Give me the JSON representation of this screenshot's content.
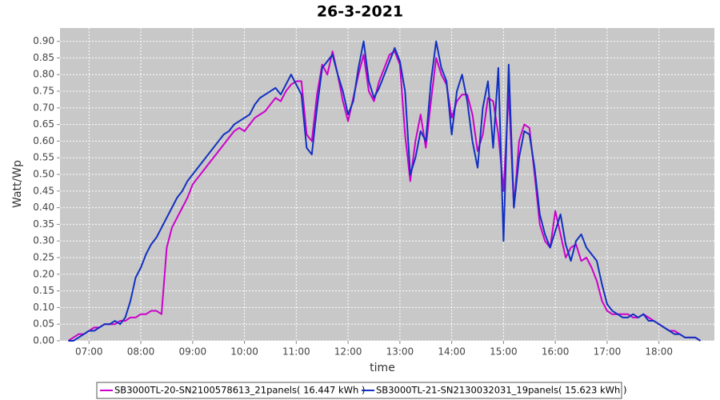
{
  "chart_data": {
    "type": "line",
    "title": "26-3-2021",
    "x_label": "time",
    "y_label": "Watt/Wp",
    "x": [
      6.6,
      6.7,
      6.8,
      6.9,
      7.0,
      7.1,
      7.2,
      7.3,
      7.4,
      7.5,
      7.6,
      7.7,
      7.8,
      7.9,
      8.0,
      8.1,
      8.2,
      8.3,
      8.4,
      8.5,
      8.6,
      8.7,
      8.8,
      8.9,
      9.0,
      9.1,
      9.2,
      9.3,
      9.4,
      9.5,
      9.6,
      9.7,
      9.8,
      9.9,
      10.0,
      10.1,
      10.2,
      10.3,
      10.4,
      10.5,
      10.6,
      10.7,
      10.8,
      10.9,
      11.0,
      11.1,
      11.2,
      11.3,
      11.4,
      11.5,
      11.6,
      11.7,
      11.8,
      11.9,
      12.0,
      12.1,
      12.2,
      12.3,
      12.4,
      12.5,
      12.6,
      12.7,
      12.8,
      12.9,
      13.0,
      13.1,
      13.2,
      13.3,
      13.4,
      13.5,
      13.6,
      13.7,
      13.8,
      13.9,
      14.0,
      14.1,
      14.2,
      14.3,
      14.4,
      14.5,
      14.6,
      14.7,
      14.8,
      14.9,
      15.0,
      15.1,
      15.2,
      15.3,
      15.4,
      15.5,
      15.6,
      15.7,
      15.8,
      15.9,
      16.0,
      16.1,
      16.2,
      16.3,
      16.4,
      16.5,
      16.6,
      16.7,
      16.8,
      16.9,
      17.0,
      17.1,
      17.2,
      17.3,
      17.4,
      17.5,
      17.6,
      17.7,
      17.8,
      17.9,
      18.0,
      18.1,
      18.2,
      18.3,
      18.4,
      18.5,
      18.6,
      18.7,
      18.8
    ],
    "series": [
      {
        "name": "SB3000TL-20-SN2100578613_21panels( 16.447 kWh )",
        "color": "#cc00cc",
        "values": [
          0.0,
          0.01,
          0.02,
          0.02,
          0.03,
          0.04,
          0.04,
          0.05,
          0.05,
          0.05,
          0.06,
          0.06,
          0.07,
          0.07,
          0.08,
          0.08,
          0.09,
          0.09,
          0.08,
          0.28,
          0.34,
          0.37,
          0.4,
          0.43,
          0.47,
          0.49,
          0.51,
          0.53,
          0.55,
          0.57,
          0.59,
          0.61,
          0.63,
          0.64,
          0.63,
          0.65,
          0.67,
          0.68,
          0.69,
          0.71,
          0.73,
          0.72,
          0.75,
          0.77,
          0.78,
          0.78,
          0.62,
          0.6,
          0.74,
          0.83,
          0.8,
          0.87,
          0.8,
          0.72,
          0.66,
          0.73,
          0.8,
          0.86,
          0.75,
          0.72,
          0.78,
          0.82,
          0.86,
          0.87,
          0.83,
          0.62,
          0.48,
          0.6,
          0.68,
          0.58,
          0.72,
          0.85,
          0.8,
          0.77,
          0.67,
          0.72,
          0.74,
          0.74,
          0.68,
          0.57,
          0.62,
          0.73,
          0.72,
          0.62,
          0.45,
          0.75,
          0.4,
          0.6,
          0.65,
          0.64,
          0.5,
          0.35,
          0.3,
          0.28,
          0.39,
          0.32,
          0.25,
          0.28,
          0.29,
          0.24,
          0.25,
          0.22,
          0.18,
          0.12,
          0.09,
          0.08,
          0.08,
          0.08,
          0.08,
          0.07,
          0.07,
          0.08,
          0.07,
          0.06,
          0.05,
          0.04,
          0.03,
          0.03,
          0.02,
          0.01,
          0.01,
          0.01,
          0.0
        ]
      },
      {
        "name": "SB3000TL-21-SN2130032031_19panels( 15.623 kWh )",
        "color": "#1030c0",
        "values": [
          0.0,
          0.0,
          0.01,
          0.02,
          0.03,
          0.03,
          0.04,
          0.05,
          0.05,
          0.06,
          0.05,
          0.07,
          0.12,
          0.19,
          0.22,
          0.26,
          0.29,
          0.31,
          0.34,
          0.37,
          0.4,
          0.43,
          0.45,
          0.48,
          0.5,
          0.52,
          0.54,
          0.56,
          0.58,
          0.6,
          0.62,
          0.63,
          0.65,
          0.66,
          0.67,
          0.68,
          0.71,
          0.73,
          0.74,
          0.75,
          0.76,
          0.74,
          0.77,
          0.8,
          0.77,
          0.74,
          0.58,
          0.56,
          0.7,
          0.82,
          0.84,
          0.86,
          0.8,
          0.75,
          0.68,
          0.72,
          0.82,
          0.9,
          0.78,
          0.73,
          0.76,
          0.8,
          0.84,
          0.88,
          0.84,
          0.75,
          0.5,
          0.55,
          0.63,
          0.6,
          0.78,
          0.9,
          0.82,
          0.78,
          0.62,
          0.75,
          0.8,
          0.72,
          0.6,
          0.52,
          0.7,
          0.78,
          0.58,
          0.82,
          0.3,
          0.83,
          0.4,
          0.55,
          0.63,
          0.62,
          0.52,
          0.38,
          0.32,
          0.28,
          0.33,
          0.38,
          0.29,
          0.24,
          0.3,
          0.32,
          0.28,
          0.26,
          0.24,
          0.17,
          0.11,
          0.09,
          0.08,
          0.07,
          0.07,
          0.08,
          0.07,
          0.08,
          0.06,
          0.06,
          0.05,
          0.04,
          0.03,
          0.02,
          0.02,
          0.01,
          0.01,
          0.01,
          0.0
        ]
      }
    ],
    "xlim": [
      6.44,
      19.07
    ],
    "xticks": [
      {
        "value": 7,
        "label": "07:00"
      },
      {
        "value": 8,
        "label": "08:00"
      },
      {
        "value": 9,
        "label": "09:00"
      },
      {
        "value": 10,
        "label": "10:00"
      },
      {
        "value": 11,
        "label": "11:00"
      },
      {
        "value": 12,
        "label": "12:00"
      },
      {
        "value": 13,
        "label": "13:00"
      },
      {
        "value": 14,
        "label": "14:00"
      },
      {
        "value": 15,
        "label": "15:00"
      },
      {
        "value": 16,
        "label": "16:00"
      },
      {
        "value": 17,
        "label": "17:00"
      },
      {
        "value": 18,
        "label": "18:00"
      }
    ],
    "ylim": [
      0,
      0.94
    ],
    "yticks": [
      {
        "value": 0,
        "label": "0.00"
      },
      0.05,
      {
        "value": 0.1,
        "label": "0.10"
      },
      0.15,
      {
        "value": 0.2,
        "label": "0.20"
      },
      0.25,
      {
        "value": 0.3,
        "label": "0.30"
      },
      0.35,
      {
        "value": 0.4,
        "label": "0.40"
      },
      0.45,
      {
        "value": 0.5,
        "label": "0.50"
      },
      0.55,
      {
        "value": 0.6,
        "label": "0.60"
      },
      0.65,
      {
        "value": 0.7,
        "label": "0.70"
      },
      0.75,
      {
        "value": 0.8,
        "label": "0.80"
      },
      0.85,
      {
        "value": 0.9,
        "label": "0.90"
      }
    ],
    "grid": true,
    "legend": "bottom"
  }
}
